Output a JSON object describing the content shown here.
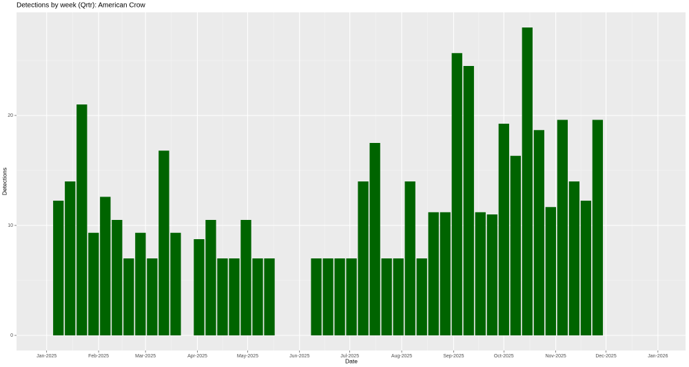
{
  "chart_data": {
    "type": "bar",
    "title": "Detections by week (Qrtr): American Crow",
    "xlabel": "Date",
    "ylabel": "Detections",
    "x": [
      7,
      14,
      21,
      28,
      35,
      42,
      49,
      56,
      63,
      70,
      77,
      84,
      91,
      98,
      105,
      112,
      119,
      126,
      133,
      140,
      147,
      154,
      161,
      168,
      175,
      182,
      189,
      196,
      203,
      210,
      217,
      224,
      231,
      238,
      245,
      252,
      259,
      266,
      273,
      280,
      287,
      294,
      301,
      308,
      315,
      322,
      329
    ],
    "values": [
      12.25,
      14,
      21,
      9.33,
      12.6,
      10.5,
      7,
      9.33,
      7,
      16.8,
      9.33,
      null,
      8.75,
      10.5,
      7,
      7,
      10.5,
      7,
      7,
      null,
      null,
      null,
      7,
      7,
      7,
      7,
      14,
      17.5,
      7,
      7,
      14,
      7,
      11.2,
      11.2,
      25.67,
      24.5,
      11.2,
      11,
      19.25,
      16.33,
      28,
      18.67,
      11.67,
      19.6,
      14,
      12.25,
      19.6
    ],
    "color": "#006400",
    "xlim": [
      -18,
      381.5
    ],
    "xticks": [
      {
        "value": 0,
        "label": "Jan-2025"
      },
      {
        "value": 31,
        "label": "Feb-2025"
      },
      {
        "value": 59,
        "label": "Mar-2025"
      },
      {
        "value": 90,
        "label": "Apr-2025"
      },
      {
        "value": 120,
        "label": "May-2025"
      },
      {
        "value": 151,
        "label": "Jun-2025"
      },
      {
        "value": 181,
        "label": "Jul-2025"
      },
      {
        "value": 212,
        "label": "Aug-2025"
      },
      {
        "value": 243,
        "label": "Sep-2025"
      },
      {
        "value": 273,
        "label": "Oct-2025"
      },
      {
        "value": 304,
        "label": "Nov-2025"
      },
      {
        "value": 334,
        "label": "Dec-2025"
      },
      {
        "value": 365,
        "label": "Jan-2026"
      }
    ],
    "ylim": [
      -1.375,
      29.375
    ],
    "yticks": [
      0,
      10,
      20
    ],
    "grid": true
  }
}
